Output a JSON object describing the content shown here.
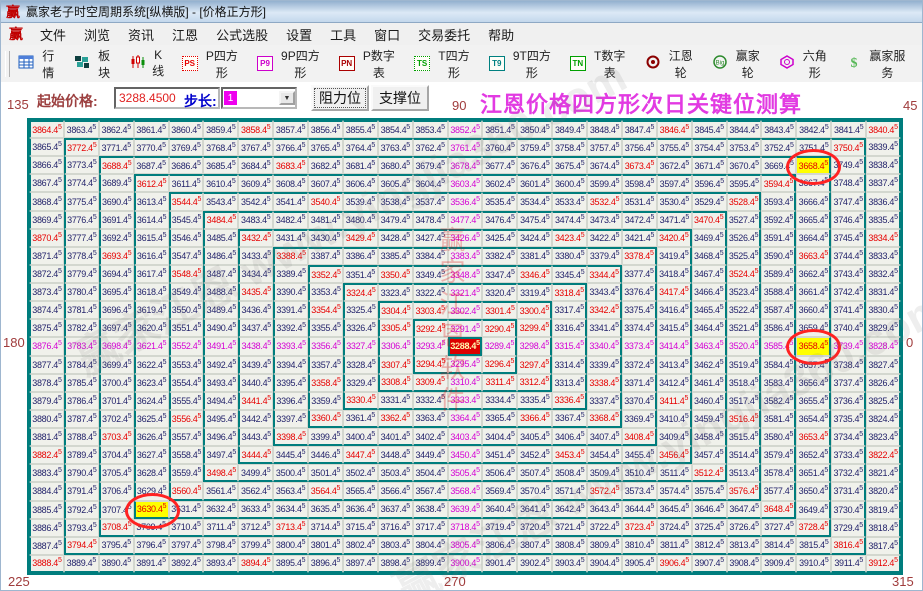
{
  "window": {
    "title": "赢家老子时空周期系统[纵横版] - [价格正方形]",
    "logo_char": "赢"
  },
  "menu": {
    "items": [
      "文件",
      "浏览",
      "资讯",
      "江恩",
      "公式选股",
      "设置",
      "工具",
      "窗口",
      "交易委托",
      "帮助"
    ]
  },
  "toolbar": {
    "items": [
      {
        "key": "quotes",
        "icon": "table-grid-icon",
        "label": "行情"
      },
      {
        "key": "sectors",
        "icon": "blocks-icon",
        "label": "板块"
      },
      {
        "key": "kline",
        "icon": "candlestick-icon",
        "label": "K线"
      },
      {
        "key": "p-square",
        "icon": "ps-badge-icon",
        "badge": "PS",
        "color": "#e60000",
        "label": "P四方形"
      },
      {
        "key": "9p-square",
        "icon": "p9-badge-icon",
        "badge": "P9",
        "color": "#cc00cc",
        "label": "9P四方形"
      },
      {
        "key": "p-number",
        "icon": "pn-badge-icon",
        "badge": "PN",
        "color": "#aa0000",
        "label": "P数字表"
      },
      {
        "key": "t-square",
        "icon": "ts-badge-icon",
        "badge": "TS",
        "color": "#00a000",
        "label": "T四方形"
      },
      {
        "key": "9t-square",
        "icon": "t9-badge-icon",
        "badge": "T9",
        "color": "#008080",
        "label": "9T四方形"
      },
      {
        "key": "t-number",
        "icon": "tn-badge-icon",
        "badge": "TN",
        "color": "#00a000",
        "label": "T数字表"
      },
      {
        "key": "gann-wheel",
        "icon": "gann-wheel-icon",
        "label": "江恩轮"
      },
      {
        "key": "winner-wheel",
        "icon": "big-wheel-icon",
        "label": "赢家轮"
      },
      {
        "key": "hexagon",
        "icon": "hexagon-icon",
        "label": "六角形"
      },
      {
        "key": "winner-service",
        "icon": "dollar-icon",
        "label": "赢家服务"
      }
    ]
  },
  "controls": {
    "start_price_label": "起始价格:",
    "start_price_value": "3288.4500",
    "step_label": "步长:",
    "step_value": "1",
    "resistance_button": "阻力位",
    "support_button": "支撑位",
    "heading": "江恩价格四方形次日关键位测算"
  },
  "angles": {
    "top_left": "135",
    "top_center": "90",
    "top_right": "45",
    "mid_left": "180",
    "mid_right": "0",
    "bottom_left": "225",
    "bottom_center": "270",
    "bottom_right": "315"
  },
  "watermark": {
    "diagonal": "赢家江恩 www.yingjia360.com",
    "vertical": "赢家江恩软件"
  },
  "colors": {
    "ring_border_teal": "#007d7d",
    "normal_value": "#23236b",
    "angle_ray_red": "#e60000",
    "cardinal_magenta": "#d400d4",
    "key_level_bg": "#ffff00",
    "center_bg": "#dd0000",
    "heading_pink": "#e23ae2",
    "label_red": "#a03c3c",
    "step_swatch": "#ee00ee"
  },
  "chart_data": {
    "type": "table",
    "subtype": "gann-price-square-spiral",
    "title": "江恩价格四方形次日关键位测算",
    "center_value": 3288.45,
    "step": 1.0,
    "size": 25,
    "value_range": [
      3288.45,
      3912.45
    ],
    "decimal_suffix": ".45",
    "center_cell": "3288.45",
    "key_levels_circled": [
      "3668.45",
      "3658.45",
      "3630.45"
    ],
    "key_cells_rc": [
      [
        2,
        22
      ],
      [
        12,
        22
      ],
      [
        21,
        3
      ]
    ],
    "angle_labels": [
      "0",
      "45",
      "90",
      "135",
      "180",
      "225",
      "270",
      "315"
    ],
    "legend": "magenta = 0/90/180/270 cardinal rays, red = 1x1 and 2x1 Gann rays, circled yellow = next-day key levels",
    "rows": [
      "3864 3863 3862 3861 3860 3859 3858 3857 3856 3855 3854 3853 3852 3851 3850 3849 3848 3847 3846 3845 3844 3843 3842 3841 3840",
      "3865 3772 3771 3770 3769 3768 3767 3766 3765 3764 3763 3762 3761 3760 3759 3758 3757 3756 3755 3754 3753 3752 3751 3750 3839",
      "3866 3773 3688 3687 3686 3685 3684 3683 3682 3681 3680 3679 3678 3677 3676 3675 3674 3673 3672 3671 3670 3669 3668 3749 3838",
      "3867 3774 3689 3612 3611 3610 3609 3608 3607 3606 3605 3604 3603 3602 3601 3600 3599 3598 3597 3596 3595 3594 3667 3748 3837",
      "3868 3775 3690 3613 3544 3543 3542 3541 3540 3539 3538 3537 3536 3535 3534 3533 3532 3531 3530 3529 3528 3593 3666 3747 3836",
      "3869 3776 3691 3614 3545 3484 3483 3482 3481 3480 3479 3478 3477 3476 3475 3474 3473 3472 3471 3470 3527 3592 3665 3746 3835",
      "3870 3777 3692 3615 3546 3485 3432 3431 3430 3429 3428 3427 3426 3425 3424 3423 3422 3421 3420 3469 3526 3591 3664 3745 3834",
      "3871 3778 3693 3616 3547 3486 3433 3388 3387 3386 3385 3384 3383 3382 3381 3380 3379 3378 3419 3468 3525 3590 3663 3744 3833",
      "3872 3779 3694 3617 3548 3487 3434 3389 3352 3351 3350 3349 3348 3347 3346 3345 3344 3377 3418 3467 3524 3589 3662 3743 3832",
      "3873 3780 3695 3618 3549 3488 3435 3390 3353 3324 3323 3322 3321 3320 3319 3318 3343 3376 3417 3466 3523 3588 3661 3742 3831",
      "3874 3781 3696 3619 3550 3489 3436 3391 3354 3325 3304 3303 3302 3301 3300 3317 3342 3375 3416 3465 3522 3587 3660 3741 3830",
      "3875 3782 3697 3620 3551 3490 3437 3392 3355 3326 3305 3292 3291 3290 3299 3316 3341 3374 3415 3464 3521 3586 3659 3740 3829",
      "3876 3783 3698 3621 3552 3491 3438 3393 3356 3327 3306 3293 3288 3289 3298 3315 3340 3373 3414 3463 3520 3585 3658 3739 3828",
      "3877 3784 3699 3622 3553 3492 3439 3394 3357 3328 3307 3294 3295 3296 3297 3314 3339 3372 3413 3462 3519 3584 3657 3738 3827",
      "3878 3785 3700 3623 3554 3493 3440 3395 3358 3329 3308 3309 3310 3311 3312 3313 3338 3371 3412 3461 3518 3583 3656 3737 3826",
      "3879 3786 3701 3624 3555 3494 3441 3396 3359 3330 3331 3332 3333 3334 3335 3336 3337 3370 3411 3460 3517 3582 3655 3736 3825",
      "3880 3787 3702 3625 3556 3495 3442 3397 3360 3361 3362 3363 3364 3365 3366 3367 3368 3369 3410 3459 3516 3581 3654 3735 3824",
      "3881 3788 3703 3626 3557 3496 3443 3398 3399 3400 3401 3402 3403 3404 3405 3406 3407 3408 3409 3458 3515 3580 3653 3734 3823",
      "3882 3789 3704 3627 3558 3497 3444 3445 3446 3447 3448 3449 3450 3451 3452 3453 3454 3455 3456 3457 3514 3579 3652 3733 3822",
      "3883 3790 3705 3628 3559 3498 3499 3500 3501 3502 3503 3504 3505 3506 3507 3508 3509 3510 3511 3512 3513 3578 3651 3732 3821",
      "3884 3791 3706 3629 3560 3561 3562 3563 3564 3565 3566 3567 3568 3569 3570 3571 3572 3573 3574 3575 3576 3577 3650 3731 3820",
      "3885 3792 3707 3630 3631 3632 3633 3634 3635 3636 3637 3638 3639 3640 3641 3642 3643 3644 3645 3646 3647 3648 3649 3730 3819",
      "3886 3793 3708 3709 3710 3711 3712 3713 3714 3715 3716 3717 3718 3719 3720 3721 3722 3723 3724 3725 3726 3727 3728 3729 3818",
      "3887 3794 3795 3796 3797 3798 3799 3800 3801 3802 3803 3804 3805 3806 3807 3808 3809 3810 3811 3812 3813 3814 3815 3816 3817",
      "3888 3889 3890 3891 3892 3893 3894 3895 3896 3897 3898 3899 3900 3901 3902 3903 3904 3905 3906 3907 3908 3909 3910 3911 3912"
    ]
  }
}
